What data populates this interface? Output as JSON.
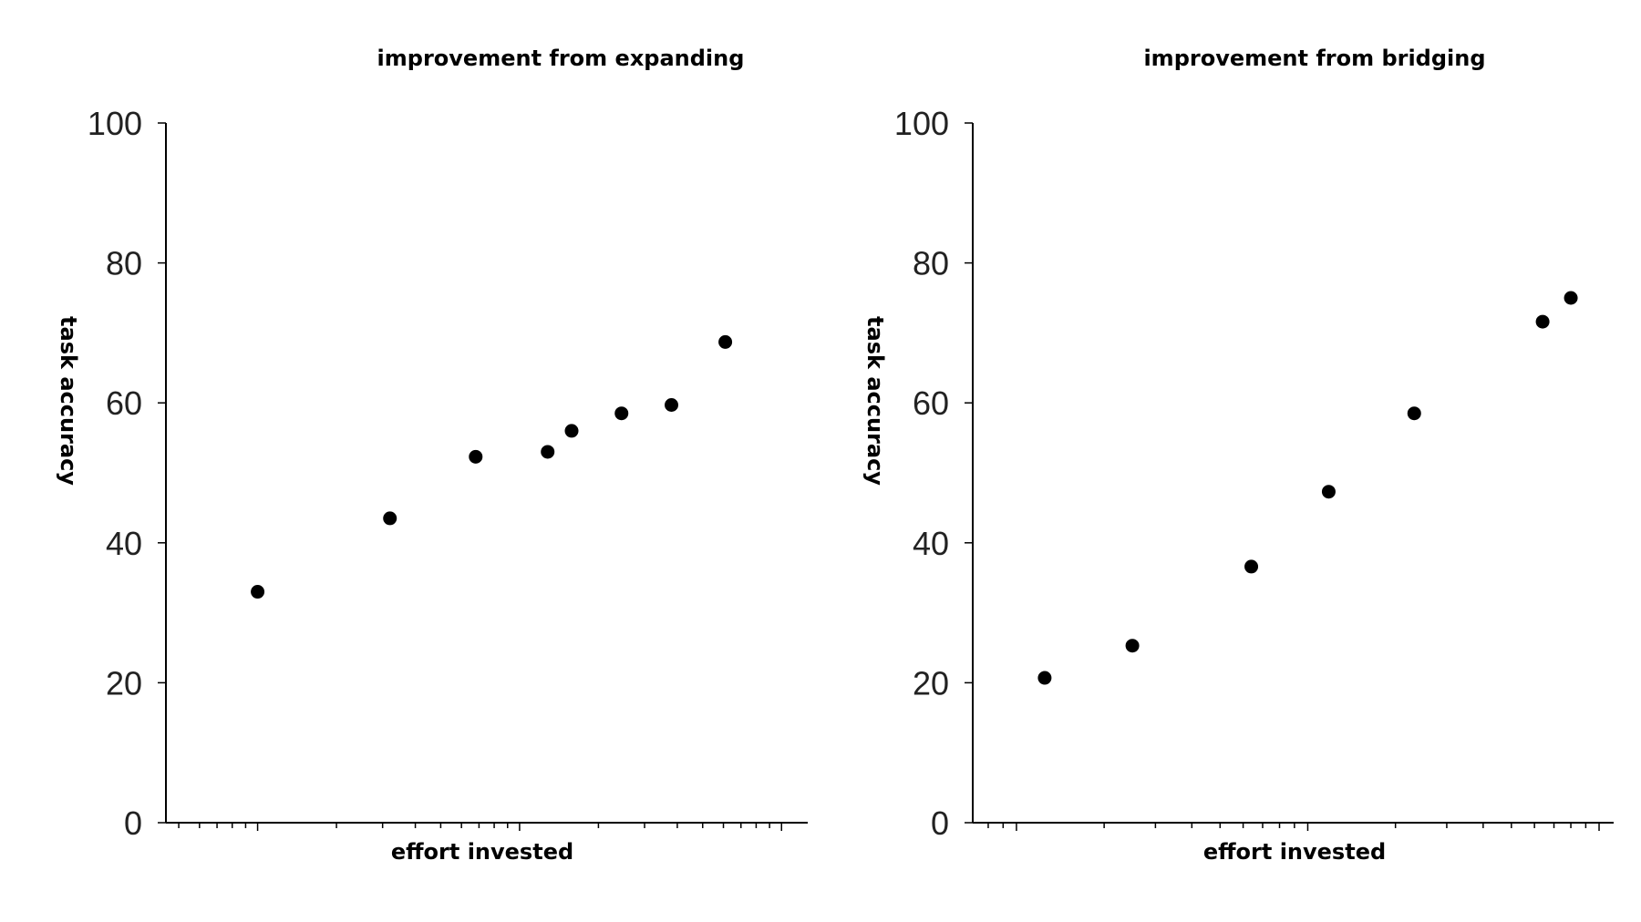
{
  "chart_data": [
    {
      "type": "scatter",
      "title": "improvement from expanding",
      "xlabel": "effort invested",
      "ylabel": "task accuracy",
      "xscale": "log",
      "xticklabels": "none",
      "ylim": [
        0,
        100
      ],
      "yticks": [
        0,
        20,
        40,
        60,
        80,
        100
      ],
      "grid": false,
      "points": [
        {
          "x": 1.0,
          "y": 33
        },
        {
          "x": 3.2,
          "y": 43.5
        },
        {
          "x": 6.8,
          "y": 52.3
        },
        {
          "x": 12.8,
          "y": 53
        },
        {
          "x": 15.8,
          "y": 56
        },
        {
          "x": 24.5,
          "y": 58.5
        },
        {
          "x": 38,
          "y": 59.7
        },
        {
          "x": 61,
          "y": 68.7
        }
      ]
    },
    {
      "type": "scatter",
      "title": "improvement from bridging",
      "xlabel": "effort invested",
      "ylabel": "task accuracy",
      "xscale": "log",
      "xticklabels": "none",
      "ylim": [
        0,
        100
      ],
      "yticks": [
        0,
        20,
        40,
        60,
        80,
        100
      ],
      "grid": false,
      "points": [
        {
          "x": 1.25,
          "y": 20.7
        },
        {
          "x": 2.5,
          "y": 25.3
        },
        {
          "x": 6.4,
          "y": 36.6
        },
        {
          "x": 11.8,
          "y": 47.3
        },
        {
          "x": 23.2,
          "y": 58.5
        },
        {
          "x": 64,
          "y": 71.6
        },
        {
          "x": 80,
          "y": 75
        }
      ]
    }
  ]
}
